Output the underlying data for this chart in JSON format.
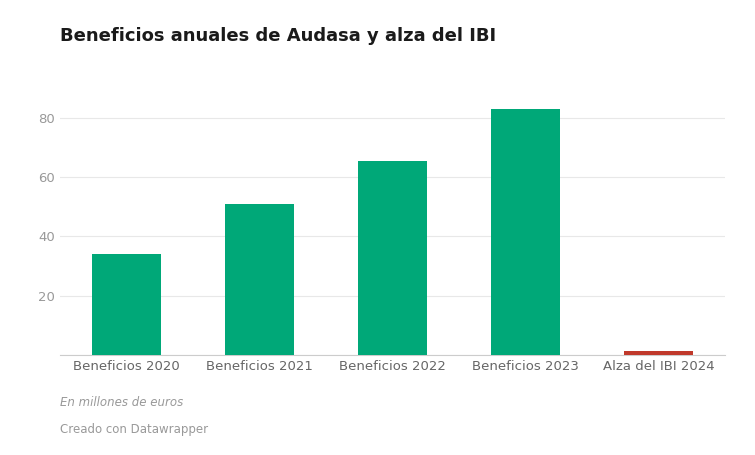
{
  "title": "Beneficios anuales de Audasa y alza del IBI",
  "categories": [
    "Beneficios 2020",
    "Beneficios 2021",
    "Beneficios 2022",
    "Beneficios 2023",
    "Alza del IBI 2024"
  ],
  "values": [
    34.0,
    51.0,
    65.5,
    83.0,
    1.4
  ],
  "bar_colors": [
    "#00A878",
    "#00A878",
    "#00A878",
    "#00A878",
    "#C0392B"
  ],
  "yticks": [
    0,
    20,
    40,
    60,
    80
  ],
  "ylim": [
    0,
    92
  ],
  "footnote1": "En millones de euros",
  "footnote2": "Creado con Datawrapper",
  "background_color": "#FFFFFF",
  "title_fontsize": 13,
  "tick_fontsize": 9.5,
  "footnote_fontsize": 8.5,
  "bar_width": 0.52
}
